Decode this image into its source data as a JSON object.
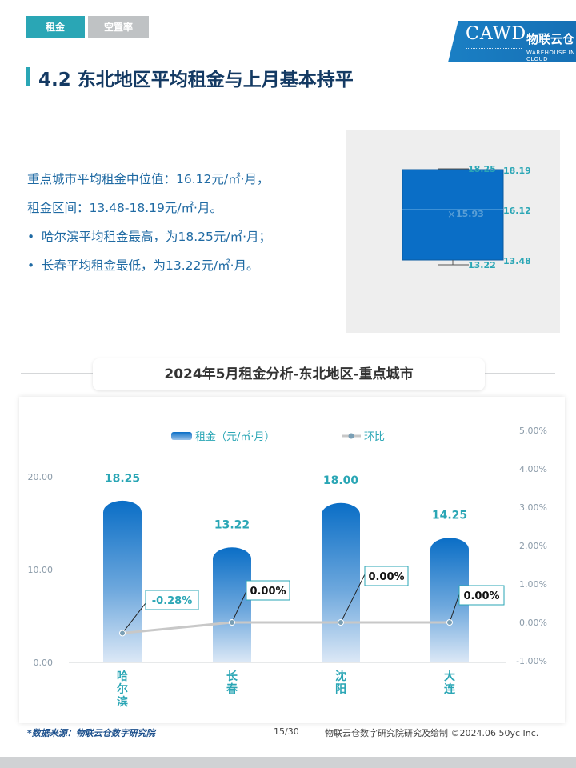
{
  "tabs": [
    {
      "label": "租金"
    },
    {
      "label": "空置率"
    }
  ],
  "logo": {
    "brand": "CAWD",
    "name": "物联云仓",
    "sub": "WAREHOUSE IN CLOUD"
  },
  "section_title": "4.2 东北地区平均租金与上月基本持平",
  "summary": {
    "line1": "重点城市平均租金中位值：16.12元/㎡·月，",
    "line2": "租金区间：13.48-18.19元/㎡·月。",
    "bullet": "•",
    "item1": "哈尔滨平均租金最高，为18.25元/㎡·月；",
    "item2": "长春平均租金最低，为13.22元/㎡·月。"
  },
  "boxplot": {
    "max_label": "18.25",
    "q3_label": "18.19",
    "mean_label": "15.93",
    "median_label": "16.12",
    "q1_label": "13.48",
    "min_label": "13.22",
    "mean_marker": "×",
    "box_color": "#0a6ec6",
    "label_color": "#2aa6b5"
  },
  "chart_title": "2024年5月租金分析-东北地区-重点城市",
  "chart_data": {
    "type": "bar",
    "title": "2024年5月租金分析-东北地区-重点城市",
    "categories": [
      "哈尔滨",
      "长春",
      "沈阳",
      "大连"
    ],
    "series": [
      {
        "name": "租金（元/㎡·月）",
        "type": "bar",
        "axis": "left",
        "values": [
          18.25,
          13.22,
          18.0,
          14.25
        ],
        "labels": [
          "18.25",
          "13.22",
          "18.00",
          "14.25"
        ]
      },
      {
        "name": "环比",
        "type": "line",
        "axis": "right",
        "values": [
          -0.28,
          0.0,
          0.0,
          0.0
        ],
        "labels": [
          "-0.28%",
          "0.00%",
          "0.00%",
          "0.00%"
        ]
      }
    ],
    "y_left": {
      "min": 0,
      "max": 20,
      "ticks": [
        "0.00",
        "10.00",
        "20.00"
      ],
      "tick_values": [
        0,
        10,
        20
      ]
    },
    "y_right": {
      "min": -1,
      "max": 5,
      "ticks": [
        "-1.00%",
        "0.00%",
        "1.00%",
        "2.00%",
        "3.00%",
        "4.00%",
        "5.00%"
      ],
      "tick_values": [
        -1,
        0,
        1,
        2,
        3,
        4,
        5
      ]
    },
    "legend_position": "top",
    "grid": false,
    "bar_color": "#0a6ec6",
    "line_color": "#c8c8c8",
    "label_color": "#2aa6b5"
  },
  "footer": {
    "source": "*数据来源：物联云仓数字研究院",
    "page": "15/30",
    "credit": "物联云仓数字研究院研究及绘制   ©2024.06 50yc Inc."
  }
}
